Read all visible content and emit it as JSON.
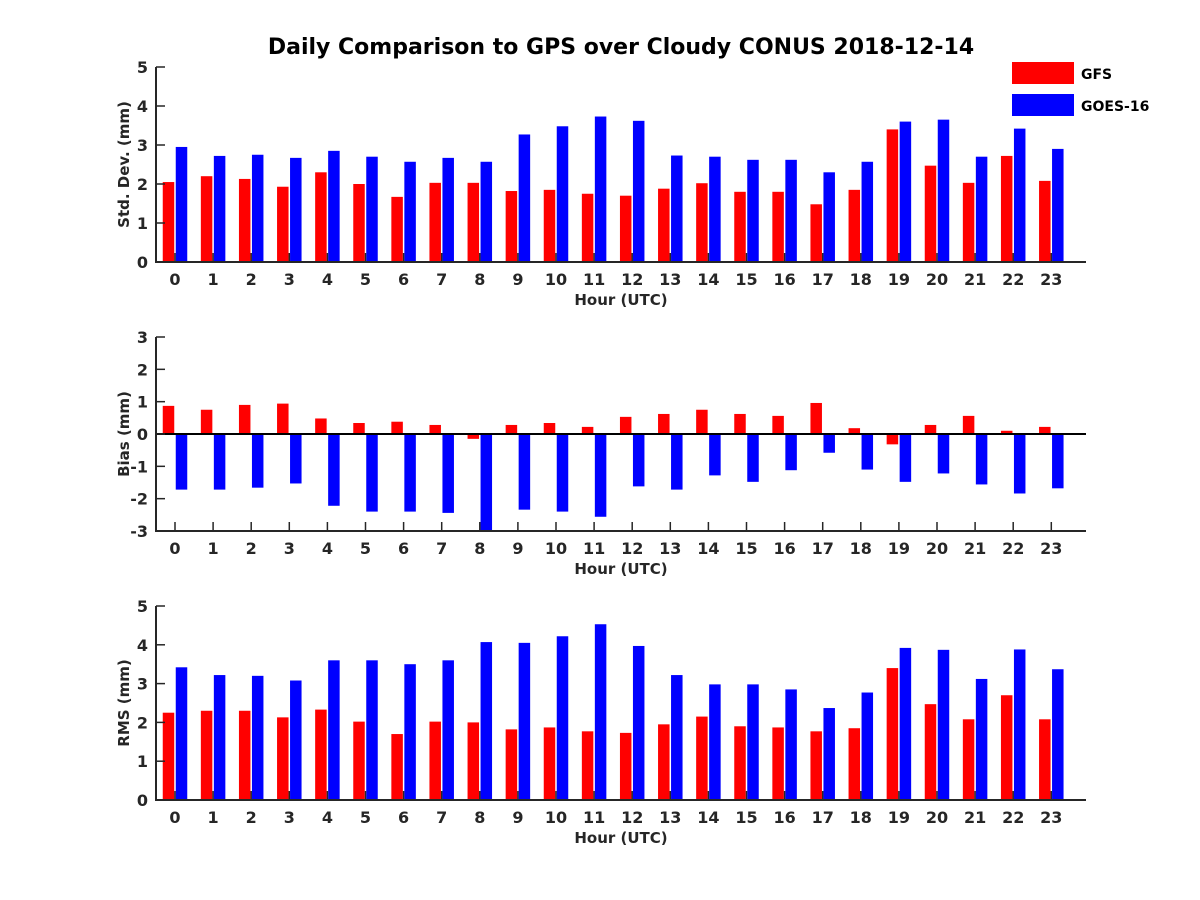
{
  "title": "Daily Comparison to GPS over Cloudy CONUS 2018-12-14",
  "legend": {
    "items": [
      {
        "name": "GFS",
        "color": "#ff0000"
      },
      {
        "name": "GOES-16",
        "color": "#0000ff"
      }
    ]
  },
  "colors": {
    "gfs": "#ff0000",
    "goes": "#0000ff",
    "axis": "#262626"
  },
  "chart_data": [
    {
      "type": "bar",
      "xlabel": "Hour (UTC)",
      "ylabel": "Std. Dev. (mm)",
      "ylim": [
        0,
        5
      ],
      "yticks": [
        0,
        1,
        2,
        3,
        4,
        5
      ],
      "categories": [
        "0",
        "1",
        "2",
        "3",
        "4",
        "5",
        "6",
        "7",
        "8",
        "9",
        "10",
        "11",
        "12",
        "13",
        "14",
        "15",
        "16",
        "17",
        "18",
        "19",
        "20",
        "21",
        "22",
        "23"
      ],
      "series": [
        {
          "name": "GFS",
          "values": [
            2.05,
            2.2,
            2.13,
            1.93,
            2.3,
            2.0,
            1.67,
            2.03,
            2.03,
            1.82,
            1.85,
            1.75,
            1.7,
            1.88,
            2.02,
            1.8,
            1.8,
            1.48,
            1.85,
            3.4,
            2.47,
            2.03,
            2.72,
            2.08
          ]
        },
        {
          "name": "GOES-16",
          "values": [
            2.95,
            2.72,
            2.75,
            2.67,
            2.85,
            2.7,
            2.57,
            2.67,
            2.57,
            3.27,
            3.48,
            3.73,
            3.62,
            2.73,
            2.7,
            2.62,
            2.62,
            2.3,
            2.57,
            3.6,
            3.65,
            2.7,
            3.42,
            2.9
          ]
        }
      ]
    },
    {
      "type": "bar",
      "xlabel": "Hour (UTC)",
      "ylabel": "Bias (mm)",
      "ylim": [
        -3,
        3
      ],
      "yticks": [
        -3,
        -2,
        -1,
        0,
        1,
        2,
        3
      ],
      "categories": [
        "0",
        "1",
        "2",
        "3",
        "4",
        "5",
        "6",
        "7",
        "8",
        "9",
        "10",
        "11",
        "12",
        "13",
        "14",
        "15",
        "16",
        "17",
        "18",
        "19",
        "20",
        "21",
        "22",
        "23"
      ],
      "series": [
        {
          "name": "GFS",
          "values": [
            0.87,
            0.75,
            0.9,
            0.94,
            0.48,
            0.34,
            0.38,
            0.28,
            -0.15,
            0.28,
            0.34,
            0.22,
            0.53,
            0.62,
            0.75,
            0.62,
            0.56,
            0.96,
            0.18,
            -0.32,
            0.28,
            0.56,
            0.1,
            0.22
          ]
        },
        {
          "name": "GOES-16",
          "values": [
            -1.72,
            -1.72,
            -1.66,
            -1.53,
            -2.22,
            -2.4,
            -2.4,
            -2.44,
            -3.0,
            -2.34,
            -2.4,
            -2.56,
            -1.62,
            -1.72,
            -1.28,
            -1.48,
            -1.12,
            -0.58,
            -1.1,
            -1.48,
            -1.22,
            -1.56,
            -1.84,
            -1.68
          ]
        }
      ]
    },
    {
      "type": "bar",
      "xlabel": "Hour (UTC)",
      "ylabel": "RMS (mm)",
      "ylim": [
        0,
        5
      ],
      "yticks": [
        0,
        1,
        2,
        3,
        4,
        5
      ],
      "categories": [
        "0",
        "1",
        "2",
        "3",
        "4",
        "5",
        "6",
        "7",
        "8",
        "9",
        "10",
        "11",
        "12",
        "13",
        "14",
        "15",
        "16",
        "17",
        "18",
        "19",
        "20",
        "21",
        "22",
        "23"
      ],
      "series": [
        {
          "name": "GFS",
          "values": [
            2.25,
            2.3,
            2.3,
            2.13,
            2.33,
            2.02,
            1.7,
            2.02,
            2.0,
            1.82,
            1.87,
            1.77,
            1.73,
            1.95,
            2.15,
            1.9,
            1.87,
            1.77,
            1.85,
            3.4,
            2.47,
            2.08,
            2.7,
            2.08
          ]
        },
        {
          "name": "GOES-16",
          "values": [
            3.42,
            3.22,
            3.2,
            3.08,
            3.6,
            3.6,
            3.5,
            3.6,
            4.07,
            4.05,
            4.22,
            4.53,
            3.97,
            3.22,
            2.98,
            2.98,
            2.85,
            2.37,
            2.77,
            3.92,
            3.87,
            3.12,
            3.88,
            3.37
          ]
        }
      ]
    }
  ]
}
